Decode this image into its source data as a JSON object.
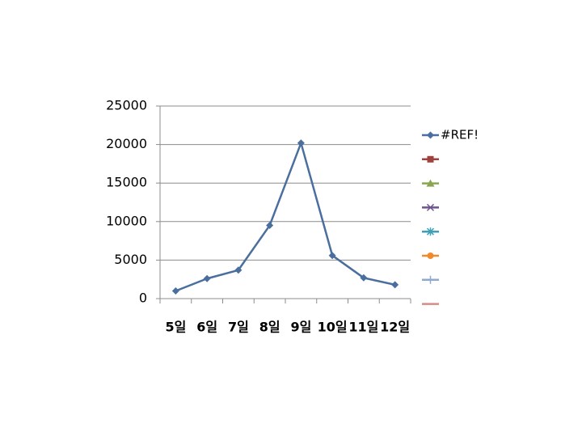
{
  "chart_data": {
    "type": "line",
    "categories": [
      "5일",
      "6일",
      "7일",
      "8일",
      "9일",
      "10일",
      "11일",
      "12일"
    ],
    "series": [
      {
        "name": "#REF!",
        "color": "#4a6f9f",
        "marker": "diamond",
        "values": [
          1000,
          2600,
          3700,
          9500,
          20200,
          5600,
          2700,
          1800
        ]
      },
      {
        "color": "#a0413d",
        "marker": "square",
        "values": [
          null,
          null,
          null,
          null,
          null,
          null,
          null,
          null
        ]
      },
      {
        "color": "#8aa74f",
        "marker": "triangle",
        "values": [
          null,
          null,
          null,
          null,
          null,
          null,
          null,
          null
        ]
      },
      {
        "color": "#6c548f",
        "marker": "x",
        "values": [
          null,
          null,
          null,
          null,
          null,
          null,
          null,
          null
        ]
      },
      {
        "color": "#3f9fb6",
        "marker": "star",
        "values": [
          null,
          null,
          null,
          null,
          null,
          null,
          null,
          null
        ]
      },
      {
        "color": "#f08a2d",
        "marker": "circle",
        "values": [
          null,
          null,
          null,
          null,
          null,
          null,
          null,
          null
        ]
      },
      {
        "color": "#8fa9d2",
        "marker": "plus",
        "values": [
          null,
          null,
          null,
          null,
          null,
          null,
          null,
          null
        ]
      },
      {
        "color": "#d78b86",
        "marker": "none",
        "values": [
          null,
          null,
          null,
          null,
          null,
          null,
          null,
          null
        ]
      }
    ],
    "ylim": [
      0,
      25000
    ],
    "yticks": [
      0,
      5000,
      10000,
      15000,
      20000,
      25000
    ],
    "grid": true,
    "legend": "right"
  }
}
